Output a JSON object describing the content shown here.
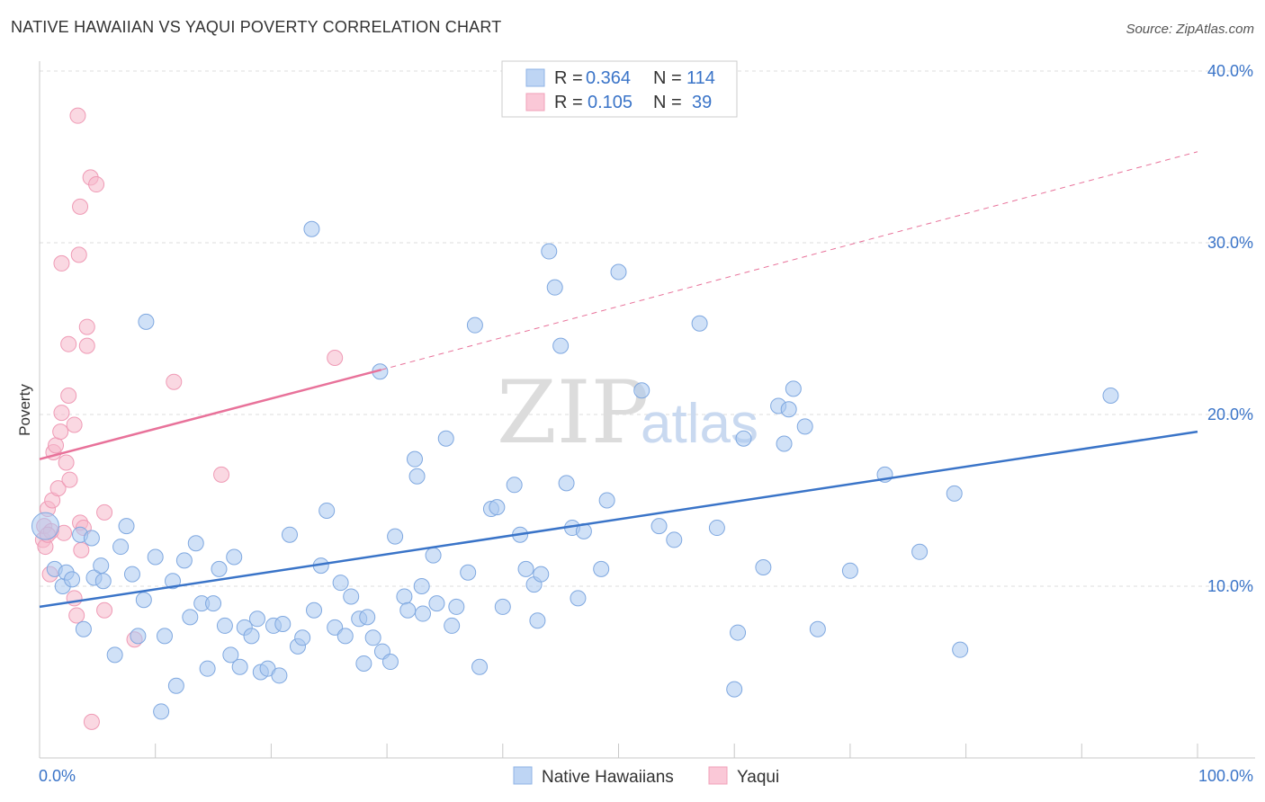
{
  "header": {
    "title": "NATIVE HAWAIIAN VS YAQUI POVERTY CORRELATION CHART",
    "source": "Source: ZipAtlas.com"
  },
  "watermark": {
    "zip": "ZIP",
    "atlas": "atlas"
  },
  "legend": {
    "r_label": "R =",
    "n_label": "N =",
    "rows": [
      {
        "r": "0.364",
        "n": "114",
        "color": "#a9c8f0"
      },
      {
        "r": "0.105",
        "n": "39",
        "color": "#f5b8cb"
      }
    ]
  },
  "bottom_legend": [
    {
      "label": "Native Hawaiians",
      "color": "#a9c8f0"
    },
    {
      "label": "Yaqui",
      "color": "#f5b8cb"
    }
  ],
  "chart_data": {
    "type": "scatter",
    "xlabel": "",
    "ylabel": "Poverty",
    "xlim": [
      0,
      100
    ],
    "ylim": [
      0,
      40
    ],
    "x_tick_labels": [
      "0.0%",
      "100.0%"
    ],
    "y_ticks": [
      10,
      20,
      30,
      40
    ],
    "y_tick_labels": [
      "10.0%",
      "20.0%",
      "30.0%",
      "40.0%"
    ],
    "grid": true,
    "colors": {
      "blue": "#3a74c8",
      "blue_fill": "#a9c8f0",
      "pink": "#e8729a",
      "pink_fill": "#f5b8cb"
    },
    "series": [
      {
        "name": "Native Hawaiians",
        "color": "#3a74c8",
        "trend": {
          "x": [
            0,
            100
          ],
          "y": [
            8.8,
            19.0
          ]
        },
        "points": [
          [
            0.5,
            13.5
          ],
          [
            1.3,
            11.0
          ],
          [
            2.0,
            10.0
          ],
          [
            2.3,
            10.8
          ],
          [
            2.8,
            10.4
          ],
          [
            3.5,
            13.0
          ],
          [
            3.8,
            7.5
          ],
          [
            4.5,
            12.8
          ],
          [
            4.7,
            10.5
          ],
          [
            5.5,
            10.3
          ],
          [
            5.3,
            11.2
          ],
          [
            6.5,
            6.0
          ],
          [
            7.0,
            12.3
          ],
          [
            7.5,
            13.5
          ],
          [
            8.0,
            10.7
          ],
          [
            8.5,
            7.1
          ],
          [
            9.0,
            9.2
          ],
          [
            9.2,
            25.4
          ],
          [
            10.0,
            11.7
          ],
          [
            10.5,
            2.7
          ],
          [
            10.8,
            7.1
          ],
          [
            11.5,
            10.3
          ],
          [
            11.8,
            4.2
          ],
          [
            12.5,
            11.5
          ],
          [
            13.0,
            8.2
          ],
          [
            13.5,
            12.5
          ],
          [
            14.0,
            9.0
          ],
          [
            14.5,
            5.2
          ],
          [
            15.0,
            9.0
          ],
          [
            15.5,
            11.0
          ],
          [
            16.0,
            7.7
          ],
          [
            16.5,
            6.0
          ],
          [
            16.8,
            11.7
          ],
          [
            17.3,
            5.3
          ],
          [
            17.7,
            7.6
          ],
          [
            18.3,
            7.1
          ],
          [
            18.8,
            8.1
          ],
          [
            19.1,
            5.0
          ],
          [
            19.7,
            5.2
          ],
          [
            20.2,
            7.7
          ],
          [
            20.7,
            4.8
          ],
          [
            21.0,
            7.8
          ],
          [
            21.6,
            13.0
          ],
          [
            22.3,
            6.5
          ],
          [
            22.7,
            7.0
          ],
          [
            23.5,
            30.8
          ],
          [
            23.7,
            8.6
          ],
          [
            24.3,
            11.2
          ],
          [
            24.8,
            14.4
          ],
          [
            25.5,
            7.6
          ],
          [
            26.0,
            10.2
          ],
          [
            26.4,
            7.1
          ],
          [
            26.9,
            9.4
          ],
          [
            27.6,
            8.1
          ],
          [
            28.0,
            5.5
          ],
          [
            28.3,
            8.2
          ],
          [
            28.8,
            7.0
          ],
          [
            29.4,
            22.5
          ],
          [
            29.6,
            6.2
          ],
          [
            30.3,
            5.6
          ],
          [
            30.7,
            12.9
          ],
          [
            31.5,
            9.4
          ],
          [
            31.8,
            8.6
          ],
          [
            32.4,
            17.4
          ],
          [
            32.6,
            16.4
          ],
          [
            33.1,
            8.4
          ],
          [
            34.3,
            9.0
          ],
          [
            34.0,
            11.8
          ],
          [
            35.1,
            18.6
          ],
          [
            35.6,
            7.7
          ],
          [
            36.0,
            8.8
          ],
          [
            37.0,
            10.8
          ],
          [
            37.6,
            25.2
          ],
          [
            38.0,
            5.3
          ],
          [
            39.0,
            14.5
          ],
          [
            39.5,
            14.6
          ],
          [
            40.0,
            8.8
          ],
          [
            41.0,
            15.9
          ],
          [
            41.5,
            13.0
          ],
          [
            42.0,
            11.0
          ],
          [
            42.7,
            10.1
          ],
          [
            43.0,
            8.0
          ],
          [
            43.3,
            10.7
          ],
          [
            44.0,
            29.5
          ],
          [
            44.5,
            27.4
          ],
          [
            45.0,
            24.0
          ],
          [
            45.5,
            16.0
          ],
          [
            46.0,
            13.4
          ],
          [
            46.5,
            9.3
          ],
          [
            47.0,
            13.2
          ],
          [
            49.0,
            15.0
          ],
          [
            50.0,
            28.3
          ],
          [
            52.0,
            21.4
          ],
          [
            53.5,
            13.5
          ],
          [
            54.8,
            12.7
          ],
          [
            57.0,
            25.3
          ],
          [
            58.5,
            13.4
          ],
          [
            60.0,
            4.0
          ],
          [
            60.3,
            7.3
          ],
          [
            60.8,
            18.6
          ],
          [
            62.5,
            11.1
          ],
          [
            63.8,
            20.5
          ],
          [
            64.3,
            18.3
          ],
          [
            64.7,
            20.3
          ],
          [
            65.1,
            21.5
          ],
          [
            66.1,
            19.3
          ],
          [
            67.2,
            7.5
          ],
          [
            70.0,
            10.9
          ],
          [
            73.0,
            16.5
          ],
          [
            76.0,
            12.0
          ],
          [
            79.0,
            15.4
          ],
          [
            79.5,
            6.3
          ],
          [
            92.5,
            21.1
          ],
          [
            33.0,
            10.0
          ],
          [
            48.5,
            11.0
          ]
        ]
      },
      {
        "name": "Yaqui",
        "color": "#e8729a",
        "trend": {
          "x": [
            0,
            29.5
          ],
          "y": [
            17.4,
            22.6
          ]
        },
        "trend_dashed": {
          "x": [
            29.5,
            100
          ],
          "y": [
            22.6,
            35.3
          ]
        },
        "points": [
          [
            0.3,
            12.7
          ],
          [
            0.4,
            13.5
          ],
          [
            0.5,
            12.3
          ],
          [
            0.7,
            14.5
          ],
          [
            0.9,
            10.7
          ],
          [
            1.0,
            13.2
          ],
          [
            1.1,
            15.0
          ],
          [
            1.2,
            17.8
          ],
          [
            1.4,
            18.2
          ],
          [
            1.6,
            15.7
          ],
          [
            1.8,
            19.0
          ],
          [
            1.9,
            20.1
          ],
          [
            2.1,
            13.1
          ],
          [
            2.3,
            17.2
          ],
          [
            2.5,
            24.1
          ],
          [
            2.5,
            21.1
          ],
          [
            2.6,
            16.2
          ],
          [
            3.0,
            9.3
          ],
          [
            3.0,
            19.4
          ],
          [
            3.2,
            8.3
          ],
          [
            3.3,
            37.4
          ],
          [
            3.4,
            29.3
          ],
          [
            3.5,
            32.1
          ],
          [
            3.5,
            13.7
          ],
          [
            3.6,
            12.1
          ],
          [
            3.8,
            13.4
          ],
          [
            4.1,
            24.0
          ],
          [
            4.1,
            25.1
          ],
          [
            4.4,
            33.8
          ],
          [
            4.5,
            2.1
          ],
          [
            4.9,
            33.4
          ],
          [
            5.6,
            14.3
          ],
          [
            5.6,
            8.6
          ],
          [
            8.2,
            6.9
          ],
          [
            11.6,
            21.9
          ],
          [
            15.7,
            16.5
          ],
          [
            25.5,
            23.3
          ],
          [
            1.9,
            28.8
          ],
          [
            0.7,
            13.0
          ]
        ]
      }
    ]
  }
}
